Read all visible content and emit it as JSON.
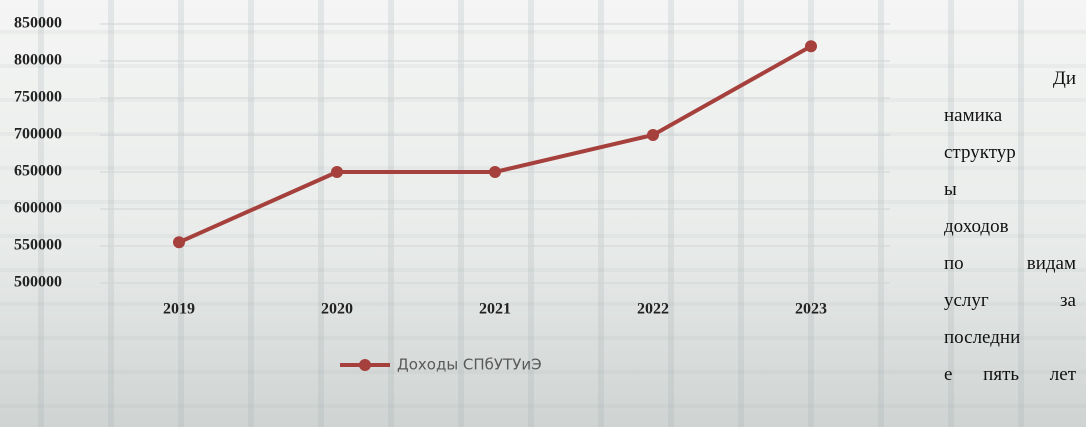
{
  "chart_data": {
    "type": "line",
    "categories": [
      "2019",
      "2020",
      "2021",
      "2022",
      "2023"
    ],
    "series": [
      {
        "name": "Доходы СПбУТУиЭ",
        "color": "#a5403c",
        "values": [
          555000,
          650000,
          650000,
          700000,
          820000
        ]
      }
    ],
    "ylim": [
      500000,
      850000
    ],
    "yticks": [
      500000,
      550000,
      600000,
      650000,
      700000,
      750000,
      800000,
      850000
    ],
    "grid": true,
    "legend": "bottom"
  },
  "side_text": {
    "lines": [
      "Ди",
      "намика",
      "структур",
      "ы",
      "доходов",
      "по видам",
      "услуг за",
      "последни",
      "е пять лет"
    ]
  }
}
